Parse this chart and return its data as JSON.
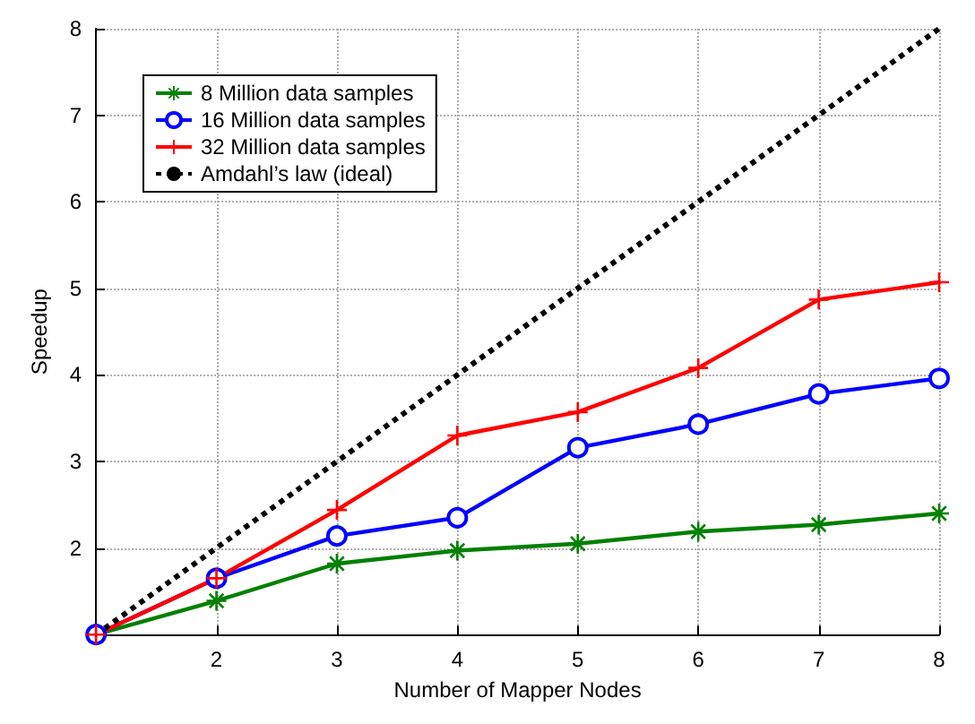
{
  "chart_data": {
    "type": "line",
    "xlabel": "Number of Mapper Nodes",
    "ylabel": "Speedup",
    "x": [
      1,
      2,
      3,
      4,
      5,
      6,
      7,
      8
    ],
    "series": [
      {
        "name": "8 Million data samples",
        "color": "#008000",
        "marker": "star",
        "values": [
          1,
          1.39,
          1.82,
          1.97,
          2.05,
          2.19,
          2.27,
          2.4
        ]
      },
      {
        "name": "16 Million data samples",
        "color": "#0000ff",
        "marker": "circle",
        "values": [
          1,
          1.65,
          2.14,
          2.35,
          3.16,
          3.43,
          3.78,
          3.96
        ]
      },
      {
        "name": "32 Million data samples",
        "color": "#ff0000",
        "marker": "cross",
        "values": [
          1,
          1.65,
          2.44,
          3.3,
          3.57,
          4.08,
          4.87,
          5.07
        ]
      },
      {
        "name": "Amdahl’s law (ideal)",
        "color": "#000000",
        "marker": "none",
        "line_style": "dotted",
        "values": [
          1,
          2,
          3,
          4,
          5,
          6,
          7,
          8
        ]
      }
    ],
    "xlim": [
      1,
      8
    ],
    "xticks": [
      {
        "value": 1,
        "label": null
      },
      2,
      3,
      4,
      5,
      6,
      7,
      8
    ],
    "ylim": [
      1,
      8
    ],
    "yticks": [
      {
        "value": 1,
        "label": null
      },
      2,
      3,
      4,
      5,
      6,
      7,
      8
    ],
    "grid": true,
    "legend": "top left"
  }
}
